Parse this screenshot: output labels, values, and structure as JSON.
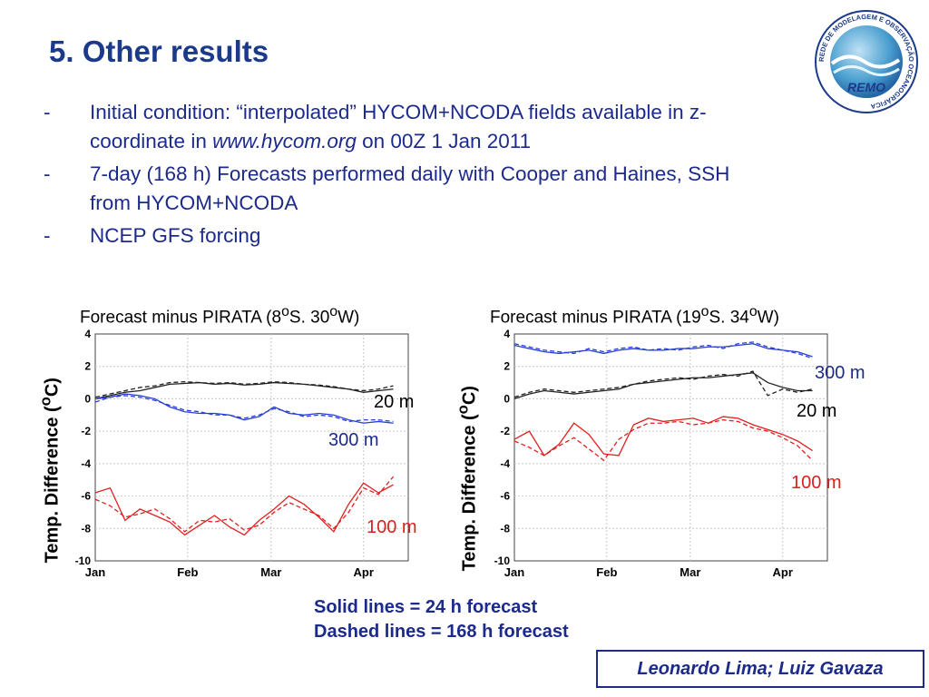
{
  "slide": {
    "title": "5. Other results",
    "bullets": [
      {
        "dash": "-",
        "lines": [
          "Initial condition: “interpolated” HYCOM+NCODA fields available in z-"
        ],
        "l2a": "coordinate in ",
        "l2url": "www.hycom.org",
        "l2b": " on 00Z 1 Jan 2011"
      },
      {
        "dash": "-",
        "lines": [
          "7-day (168 h) Forecasts performed daily with Cooper and Haines, SSH",
          "from HYCOM+NCODA"
        ]
      },
      {
        "dash": "-",
        "lines": [
          "NCEP GFS forcing"
        ]
      }
    ],
    "legend_note": [
      "Solid lines = 24 h forecast",
      "Dashed lines = 168 h forecast"
    ],
    "authors": "Leonardo Lima; Luiz Gavaza",
    "logo": {
      "ring_text": "REDE DE MODELAGEM E OBSERVAÇÃO OCEANOGRÁFICA",
      "name": "REMO",
      "icon": "wave-globe-logo"
    },
    "colors": {
      "title": "#1c3a8a",
      "text": "#1c2a8c",
      "black": "#222222",
      "blue": "#2a3fd6",
      "red": "#e02020"
    }
  },
  "chart_data": [
    {
      "type": "line",
      "title": "Forecast minus PIRATA (8°S. 30°W)",
      "title_main": "Forecast minus PIRATA (8",
      "title_s1": "o",
      "title_mid": "S. 30",
      "title_s2": "o",
      "title_end": "W)",
      "ylabel": "Temp. Difference  (°C)",
      "ylabel_main": "Temp. Difference  (",
      "ylabel_sup": "o",
      "ylabel_end": "C)",
      "ylim": [
        -10,
        4
      ],
      "yticks": [
        "4",
        "2",
        "0",
        "-2",
        "-4",
        "-6",
        "-8",
        "-10"
      ],
      "xlim": [
        0,
        105
      ],
      "xticks": [
        {
          "label": "Jan",
          "day": 0
        },
        {
          "label": "Feb",
          "day": 31
        },
        {
          "label": "Mar",
          "day": 59
        },
        {
          "label": "Apr",
          "day": 90
        }
      ],
      "x": [
        0,
        5,
        10,
        15,
        20,
        25,
        30,
        35,
        40,
        45,
        50,
        55,
        60,
        65,
        70,
        75,
        80,
        85,
        90,
        95,
        100
      ],
      "annotations": {
        "20m": "20 m",
        "300m": "300 m",
        "100m": "100 m"
      },
      "series": [
        {
          "name": "20 m",
          "color": "black",
          "y_solid": [
            0,
            0.2,
            0.4,
            0.5,
            0.7,
            0.9,
            0.95,
            1,
            0.9,
            0.95,
            0.85,
            0.9,
            1,
            0.95,
            0.9,
            0.8,
            0.7,
            0.6,
            0.4,
            0.5,
            0.6
          ],
          "y_dashed": [
            0.1,
            0.3,
            0.5,
            0.7,
            0.8,
            1,
            1.05,
            1,
            0.95,
            1,
            0.9,
            0.95,
            1.05,
            1,
            0.9,
            0.85,
            0.75,
            0.6,
            0.5,
            0.6,
            0.8
          ]
        },
        {
          "name": "300 m",
          "color": "blue",
          "y_solid": [
            0,
            0.1,
            0.3,
            0.2,
            0,
            -0.5,
            -0.8,
            -0.9,
            -0.9,
            -1,
            -1.3,
            -1.1,
            -0.5,
            -0.9,
            -1,
            -0.9,
            -1,
            -1.3,
            -1.5,
            -1.4,
            -1.5
          ],
          "y_dashed": [
            -0.2,
            0.1,
            0.2,
            0.1,
            -0.1,
            -0.4,
            -0.7,
            -0.8,
            -1,
            -1,
            -1.2,
            -1,
            -0.6,
            -0.8,
            -1.1,
            -1,
            -1.1,
            -1.4,
            -1.3,
            -1.3,
            -1.4
          ]
        },
        {
          "name": "100 m",
          "color": "red",
          "y_solid": [
            -5.8,
            -5.5,
            -7.5,
            -6.8,
            -7.2,
            -7.6,
            -8.4,
            -7.8,
            -7.2,
            -7.9,
            -8.4,
            -7.5,
            -6.8,
            -6,
            -6.5,
            -7.3,
            -8.2,
            -6.5,
            -5.2,
            -5.8,
            -5.3
          ],
          "y_dashed": [
            -6.2,
            -6.6,
            -7.3,
            -7.1,
            -6.8,
            -7.4,
            -8.2,
            -7.5,
            -7.6,
            -7.4,
            -8.1,
            -7.8,
            -7,
            -6.4,
            -6.8,
            -7.2,
            -8,
            -7,
            -5.5,
            -5.9,
            -4.8
          ]
        }
      ]
    },
    {
      "type": "line",
      "title": "Forecast minus PIRATA (19°S. 34°W)",
      "title_main": "Forecast minus PIRATA (19",
      "title_s1": "o",
      "title_mid": "S. 34",
      "title_s2": "o",
      "title_end": "W)",
      "ylabel": "Temp. Difference  (°C)",
      "ylabel_main": "Temp. Difference  (",
      "ylabel_sup": "o",
      "ylabel_end": "C)",
      "ylim": [
        -10,
        4
      ],
      "yticks": [
        "4",
        "2",
        "0",
        "-2",
        "-4",
        "-6",
        "-8",
        "-10"
      ],
      "xlim": [
        0,
        105
      ],
      "xticks": [
        {
          "label": "Jan",
          "day": 0
        },
        {
          "label": "Feb",
          "day": 31
        },
        {
          "label": "Mar",
          "day": 59
        },
        {
          "label": "Apr",
          "day": 90
        }
      ],
      "x": [
        0,
        5,
        10,
        15,
        20,
        25,
        30,
        35,
        40,
        45,
        50,
        55,
        60,
        65,
        70,
        75,
        80,
        85,
        90,
        95,
        100
      ],
      "annotations": {
        "20m": "20 m",
        "300m": "300 m",
        "100m": "100 m"
      },
      "series": [
        {
          "name": "300 m",
          "color": "blue",
          "y_solid": [
            3.3,
            3.1,
            2.9,
            2.8,
            2.9,
            3,
            2.8,
            3,
            3.1,
            3,
            3,
            3.1,
            3.1,
            3.2,
            3.2,
            3.3,
            3.4,
            3.1,
            3,
            2.9,
            2.6
          ],
          "y_dashed": [
            3.4,
            3.2,
            3,
            2.9,
            2.8,
            3.1,
            2.9,
            3.1,
            3.2,
            3,
            3.1,
            3,
            3.2,
            3.3,
            3.1,
            3.4,
            3.5,
            3.2,
            3,
            2.8,
            2.5
          ]
        },
        {
          "name": "20 m",
          "color": "black",
          "y_solid": [
            0,
            0.3,
            0.5,
            0.4,
            0.3,
            0.4,
            0.5,
            0.6,
            0.9,
            1,
            1.1,
            1.2,
            1.3,
            1.3,
            1.4,
            1.5,
            1.6,
            1,
            0.7,
            0.5,
            0.5
          ],
          "y_dashed": [
            0.1,
            0.4,
            0.6,
            0.5,
            0.4,
            0.5,
            0.6,
            0.7,
            0.9,
            1.1,
            1.2,
            1.3,
            1.2,
            1.4,
            1.5,
            1.4,
            1.7,
            0.2,
            0.6,
            0.4,
            0.6
          ]
        },
        {
          "name": "100 m",
          "color": "red",
          "y_solid": [
            -2.5,
            -2,
            -3.5,
            -2.8,
            -1.5,
            -2.2,
            -3.4,
            -3.5,
            -1.6,
            -1.2,
            -1.4,
            -1.3,
            -1.2,
            -1.5,
            -1.1,
            -1.2,
            -1.6,
            -1.9,
            -2.2,
            -2.6,
            -3.2
          ],
          "y_dashed": [
            -2.6,
            -3,
            -3.5,
            -2.9,
            -2.4,
            -3.1,
            -3.8,
            -2.5,
            -1.9,
            -1.5,
            -1.5,
            -1.4,
            -1.6,
            -1.5,
            -1.3,
            -1.4,
            -1.8,
            -2,
            -2.4,
            -2.9,
            -3.8
          ]
        }
      ]
    }
  ]
}
